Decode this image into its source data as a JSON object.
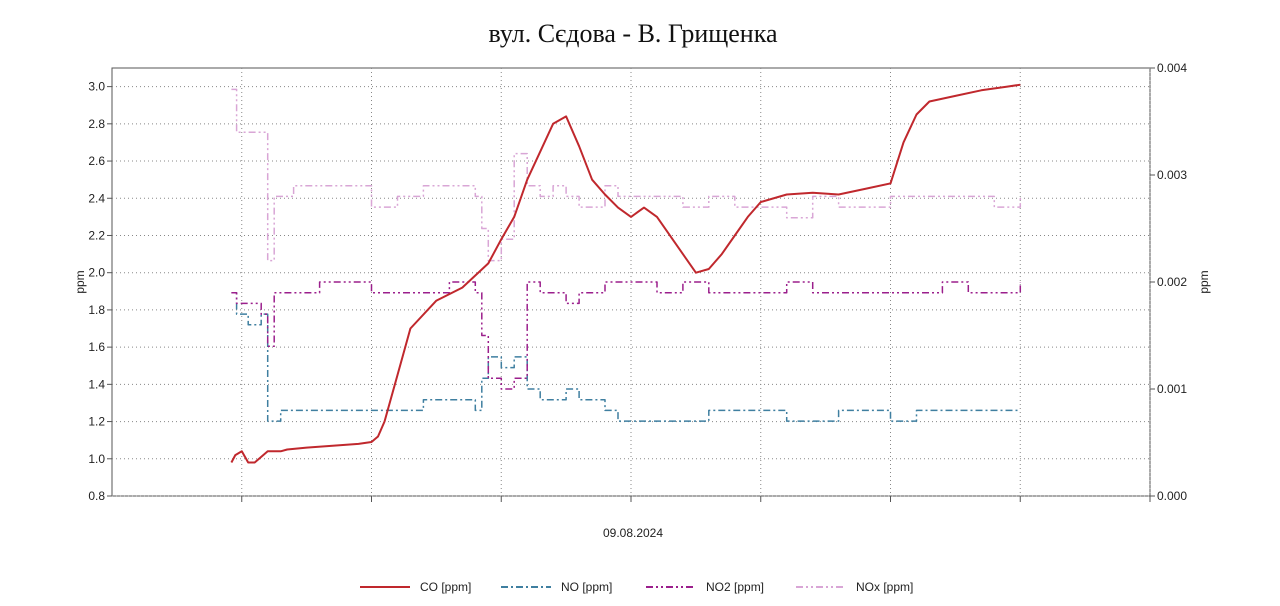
{
  "chart_data": {
    "type": "line",
    "title": "вул. Сєдова - В. Грищенка",
    "xlabel": "09.08.2024",
    "ylabel": "ppm",
    "y2label": "ppm",
    "ylim": [
      0.8,
      3.1
    ],
    "y2lim": [
      0.0,
      0.004
    ],
    "yticks": [
      0.8,
      1.0,
      1.2,
      1.4,
      1.6,
      1.8,
      2.0,
      2.2,
      2.4,
      2.6,
      2.8,
      3.0
    ],
    "ytick_labels": [
      "0.8",
      "1.0",
      "1.2",
      "1.4",
      "1.6",
      "1.8",
      "2.0",
      "2.2",
      "2.4",
      "2.6",
      "2.8",
      "3.0"
    ],
    "y2ticks": [
      0.0,
      0.001,
      0.002,
      0.003,
      0.004
    ],
    "y2tick_labels": [
      "0.000",
      "0.001",
      "0.002",
      "0.003",
      "0.004"
    ],
    "xlim": [
      0,
      8
    ],
    "xgrid": [
      1,
      2,
      3,
      4,
      5,
      6,
      7,
      8
    ],
    "grid": true,
    "legend_position": "bottom",
    "series": [
      {
        "name": "CO [ppm]",
        "axis": "left",
        "color": "#c0282d",
        "dash": "solid",
        "x": [
          0.92,
          0.95,
          1.0,
          1.05,
          1.1,
          1.2,
          1.3,
          1.35,
          1.5,
          1.7,
          1.9,
          2.0,
          2.05,
          2.1,
          2.2,
          2.3,
          2.5,
          2.7,
          2.9,
          3.0,
          3.1,
          3.2,
          3.3,
          3.4,
          3.5,
          3.6,
          3.7,
          3.8,
          3.9,
          4.0,
          4.1,
          4.2,
          4.4,
          4.5,
          4.6,
          4.7,
          4.8,
          4.9,
          5.0,
          5.2,
          5.4,
          5.6,
          5.8,
          6.0,
          6.1,
          6.2,
          6.3,
          6.5,
          6.7,
          6.9,
          7.0
        ],
        "values": [
          0.98,
          1.02,
          1.04,
          0.98,
          0.98,
          1.04,
          1.04,
          1.05,
          1.06,
          1.07,
          1.08,
          1.09,
          1.12,
          1.2,
          1.45,
          1.7,
          1.85,
          1.92,
          2.05,
          2.18,
          2.3,
          2.5,
          2.65,
          2.8,
          2.84,
          2.68,
          2.5,
          2.42,
          2.35,
          2.3,
          2.35,
          2.3,
          2.1,
          2.0,
          2.02,
          2.1,
          2.2,
          2.3,
          2.38,
          2.42,
          2.43,
          2.42,
          2.45,
          2.48,
          2.7,
          2.85,
          2.92,
          2.95,
          2.98,
          3.0,
          3.01
        ]
      },
      {
        "name": "NO [ppm]",
        "axis": "right",
        "color": "#3f7fa0",
        "dash": "dashdot",
        "x": [
          0.92,
          0.96,
          1.05,
          1.15,
          1.2,
          1.25,
          1.3,
          1.4,
          1.6,
          1.8,
          2.0,
          2.2,
          2.4,
          2.6,
          2.8,
          2.85,
          2.9,
          3.0,
          3.1,
          3.2,
          3.3,
          3.4,
          3.5,
          3.6,
          3.7,
          3.8,
          3.9,
          4.0,
          4.2,
          4.4,
          4.6,
          4.8,
          5.0,
          5.2,
          5.4,
          5.6,
          5.8,
          6.0,
          6.2,
          6.4,
          6.6,
          6.8,
          7.0
        ],
        "values": [
          0.0019,
          0.0017,
          0.0016,
          0.0017,
          0.0007,
          0.0007,
          0.0008,
          0.0008,
          0.0008,
          0.0008,
          0.0008,
          0.0008,
          0.0009,
          0.0009,
          0.0008,
          0.0011,
          0.0013,
          0.0012,
          0.0013,
          0.001,
          0.0009,
          0.0009,
          0.001,
          0.0009,
          0.0009,
          0.0008,
          0.0007,
          0.0007,
          0.0007,
          0.0007,
          0.0008,
          0.0008,
          0.0008,
          0.0007,
          0.0007,
          0.0008,
          0.0008,
          0.0007,
          0.0008,
          0.0008,
          0.0008,
          0.0008,
          0.0008
        ]
      },
      {
        "name": "NO2 [ppm]",
        "axis": "right",
        "color": "#9b1f8c",
        "dash": "dashdotdot",
        "x": [
          0.92,
          0.96,
          1.05,
          1.15,
          1.2,
          1.25,
          1.3,
          1.4,
          1.6,
          1.8,
          2.0,
          2.2,
          2.4,
          2.6,
          2.8,
          2.85,
          2.9,
          3.0,
          3.1,
          3.2,
          3.3,
          3.4,
          3.5,
          3.6,
          3.7,
          3.8,
          3.9,
          4.0,
          4.2,
          4.4,
          4.6,
          4.8,
          5.0,
          5.2,
          5.4,
          5.6,
          5.8,
          6.0,
          6.2,
          6.4,
          6.6,
          6.8,
          7.0
        ],
        "values": [
          0.0019,
          0.0018,
          0.0018,
          0.0017,
          0.0014,
          0.0019,
          0.0019,
          0.0019,
          0.002,
          0.002,
          0.0019,
          0.0019,
          0.0019,
          0.002,
          0.0019,
          0.0015,
          0.0011,
          0.001,
          0.0011,
          0.002,
          0.0019,
          0.0019,
          0.0018,
          0.0019,
          0.0019,
          0.002,
          0.002,
          0.002,
          0.0019,
          0.002,
          0.0019,
          0.0019,
          0.0019,
          0.002,
          0.0019,
          0.0019,
          0.0019,
          0.0019,
          0.0019,
          0.002,
          0.0019,
          0.0019,
          0.002
        ]
      },
      {
        "name": "NOx [ppm]",
        "axis": "right",
        "color": "#d9a6d6",
        "dash": "dashdotdot",
        "x": [
          0.92,
          0.96,
          1.05,
          1.15,
          1.2,
          1.25,
          1.3,
          1.4,
          1.6,
          1.8,
          2.0,
          2.2,
          2.4,
          2.6,
          2.8,
          2.85,
          2.9,
          3.0,
          3.1,
          3.2,
          3.3,
          3.4,
          3.5,
          3.6,
          3.7,
          3.8,
          3.9,
          4.0,
          4.2,
          4.4,
          4.6,
          4.8,
          5.0,
          5.2,
          5.4,
          5.6,
          5.8,
          6.0,
          6.2,
          6.4,
          6.6,
          6.8,
          7.0
        ],
        "values": [
          0.0038,
          0.0034,
          0.0034,
          0.0034,
          0.0022,
          0.0028,
          0.0028,
          0.0029,
          0.0029,
          0.0029,
          0.0027,
          0.0028,
          0.0029,
          0.0029,
          0.0028,
          0.0025,
          0.0022,
          0.0024,
          0.0032,
          0.0029,
          0.0028,
          0.0029,
          0.0028,
          0.0027,
          0.0027,
          0.0029,
          0.0028,
          0.0028,
          0.0028,
          0.0027,
          0.0028,
          0.0027,
          0.0027,
          0.0026,
          0.0028,
          0.0027,
          0.0027,
          0.0028,
          0.0028,
          0.0028,
          0.0028,
          0.0027,
          0.0028
        ]
      }
    ]
  }
}
